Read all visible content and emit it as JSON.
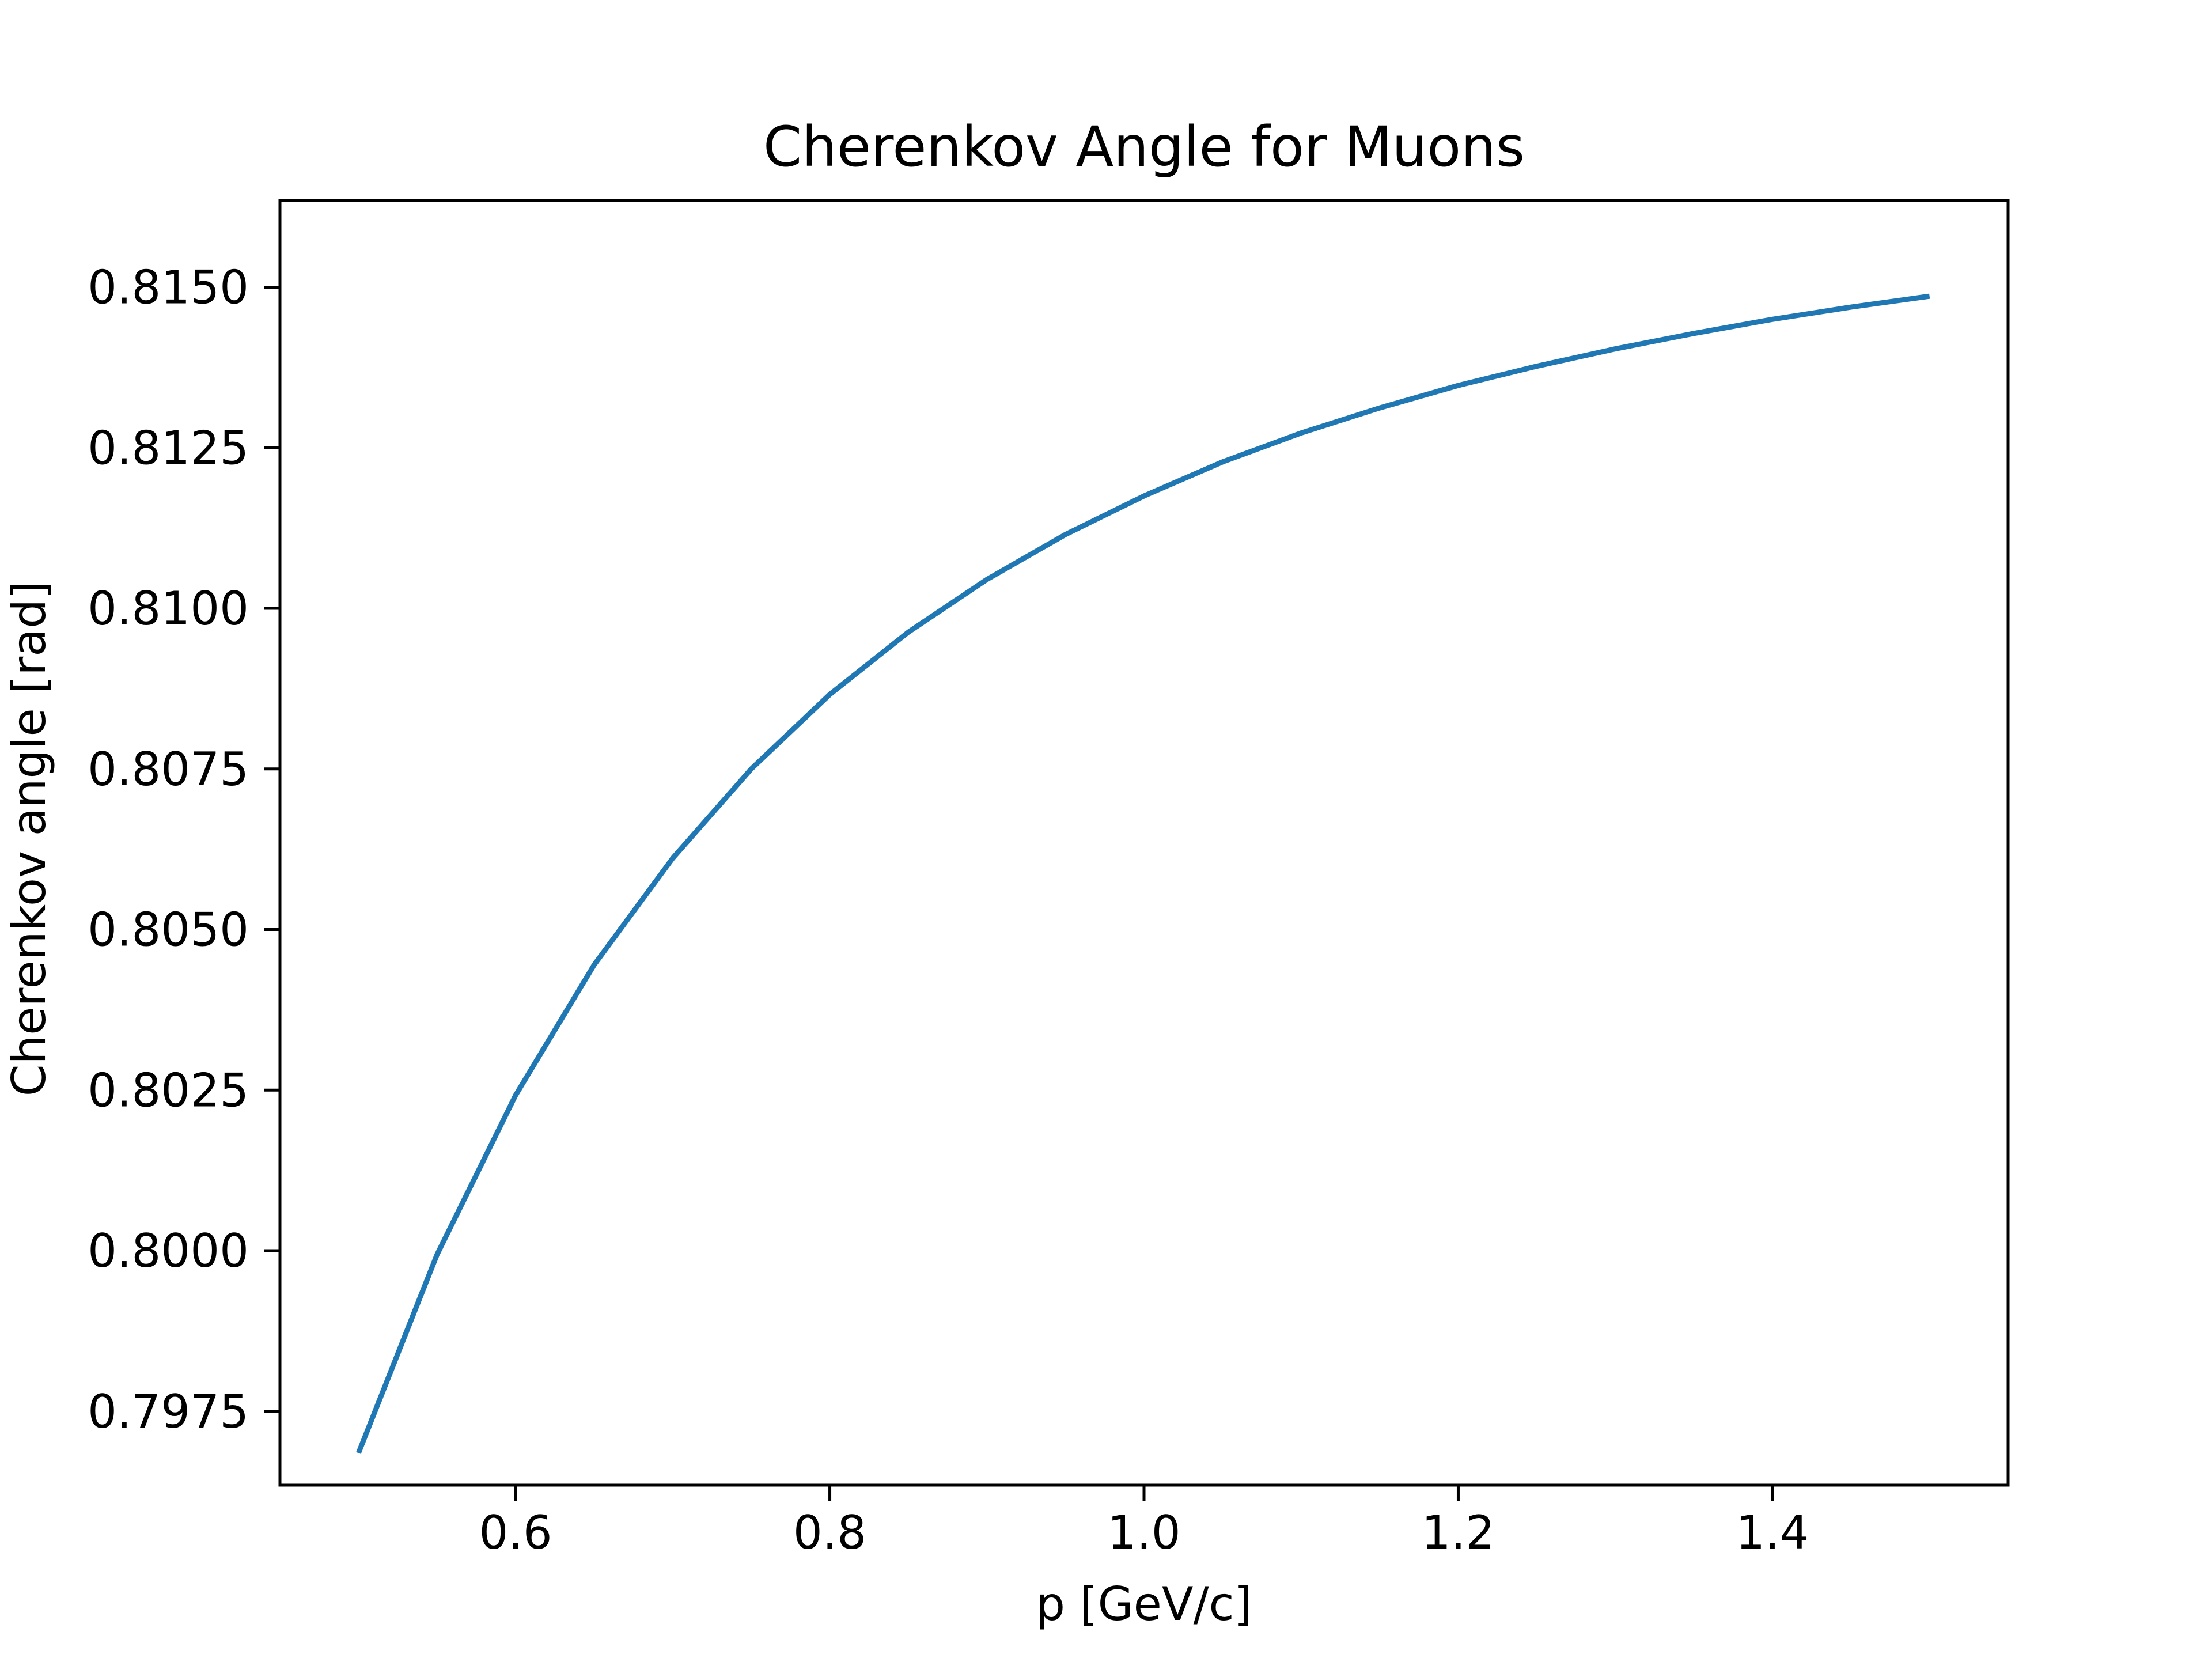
{
  "chart_data": {
    "type": "line",
    "title": "Cherenkov Angle for Muons",
    "xlabel": "p [GeV/c]",
    "ylabel": "Cherenkov angle [rad]",
    "xlim": [
      0.45,
      1.55
    ],
    "ylim": [
      0.79635,
      0.81635
    ],
    "xticks": [
      0.6,
      0.8,
      1.0,
      1.2,
      1.4
    ],
    "xtick_labels": [
      "0.6",
      "0.8",
      "1.0",
      "1.2",
      "1.4"
    ],
    "yticks": [
      0.7975,
      0.8,
      0.8025,
      0.805,
      0.8075,
      0.81,
      0.8125,
      0.815
    ],
    "ytick_labels": [
      "0.7975",
      "0.8000",
      "0.8025",
      "0.8050",
      "0.8075",
      "0.8100",
      "0.8125",
      "0.8150"
    ],
    "grid": false,
    "legend": "none",
    "series": [
      {
        "color": "#1f77b4",
        "x": [
          0.5,
          0.55,
          0.6,
          0.65,
          0.7,
          0.75,
          0.8,
          0.85,
          0.9,
          0.95,
          1.0,
          1.05,
          1.1,
          1.15,
          1.2,
          1.25,
          1.3,
          1.35,
          1.4,
          1.45,
          1.5
        ],
        "y": [
          0.79685,
          0.79994,
          0.80242,
          0.80445,
          0.80611,
          0.8075,
          0.80866,
          0.80963,
          0.81045,
          0.81115,
          0.81175,
          0.81228,
          0.81273,
          0.81312,
          0.81347,
          0.81377,
          0.81404,
          0.81428,
          0.8145,
          0.81469,
          0.81486
        ]
      }
    ]
  }
}
